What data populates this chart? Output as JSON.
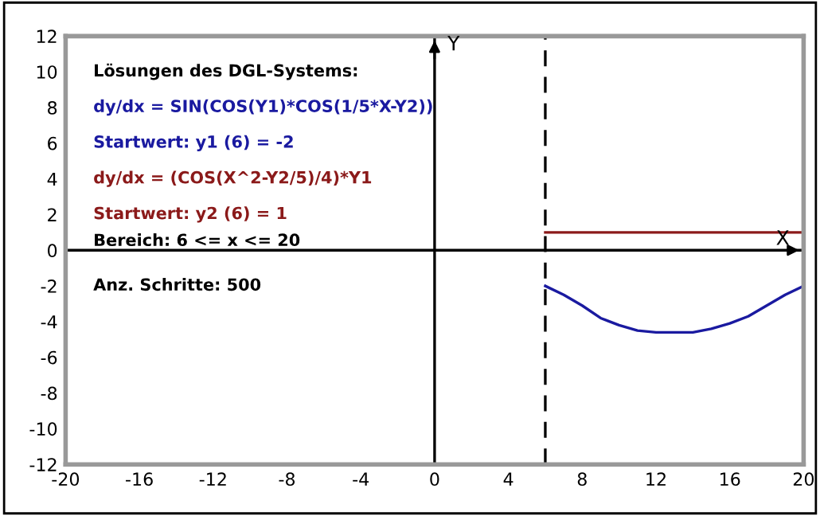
{
  "chart_data": {
    "type": "line",
    "annotations": [
      "Lösungen des DGL-Systems:",
      "dy/dx = SIN(COS(Y1)*COS(1/5*X-Y2))",
      "Startwert: y1 (6) = -2",
      "dy/dx = (COS(X^2-Y2/5)/4)*Y1",
      "Startwert: y2 (6) = 1",
      "Bereich: 6 <= x <= 20",
      "Anz. Schritte: 500"
    ],
    "series": [
      {
        "color": "#1a1aa0",
        "x": [
          6,
          7,
          8,
          9,
          10,
          11,
          12,
          13,
          14,
          15,
          16,
          17,
          18,
          19,
          20
        ],
        "values": [
          -2,
          -2.5,
          -3.1,
          -3.8,
          -4.2,
          -4.5,
          -4.6,
          -4.6,
          -4.6,
          -4.4,
          -4.1,
          -3.7,
          -3.1,
          -2.5,
          -2
        ]
      },
      {
        "color": "#8b1a1a",
        "x": [
          6,
          8,
          10,
          12,
          14,
          16,
          18,
          20
        ],
        "values": [
          1,
          1,
          1,
          1,
          1,
          1,
          1,
          1
        ]
      }
    ],
    "xlim": [
      -20,
      20
    ],
    "ylim": [
      -12,
      12
    ],
    "xticks": [
      -20,
      -16,
      -12,
      -8,
      -4,
      0,
      4,
      8,
      12,
      16,
      20
    ],
    "yticks": [
      -12,
      -10,
      -8,
      -6,
      -4,
      -2,
      0,
      2,
      4,
      6,
      8,
      10,
      12
    ],
    "ref_lines": [
      {
        "axis": "x",
        "value": 6,
        "line_style": "dashed",
        "color": "#000000"
      },
      {
        "axis": "x",
        "value": 0,
        "label": "Y",
        "color": "#000000"
      },
      {
        "axis": "y",
        "value": 0,
        "label": "X",
        "color": "#000000"
      }
    ],
    "grid": false,
    "legend": false
  }
}
